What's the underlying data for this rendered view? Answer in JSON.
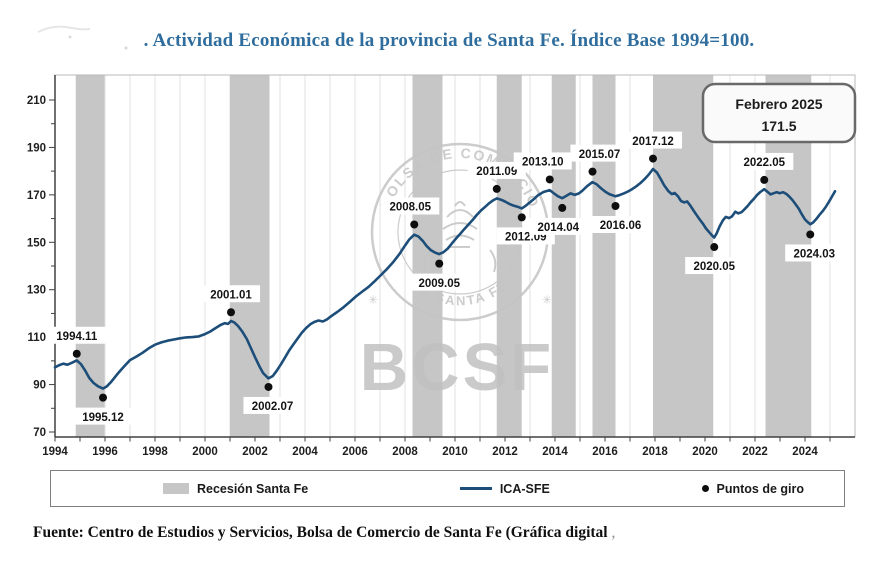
{
  "page": {
    "title": ". Actividad Económica de la provincia de Santa Fe. Índice Base 1994=100.",
    "title_color": "#2e6d9d",
    "source_note": "Fuente: Centro de Estudios y Servicios, Bolsa de Comercio de Santa Fe (Gráfica digital",
    "source_suffix": ","
  },
  "legend": {
    "recession_label": "Recesión Santa Fe",
    "line_label": "ICA-SFE",
    "points_label": "Puntos de giro"
  },
  "watermark": {
    "letters": "BCSF",
    "seal_top": "BOLSA DE COMERCIO",
    "seal_bottom": "DE SANTA FE"
  },
  "colors": {
    "line": "#1d4e79",
    "band": "#c6c6c6",
    "grid": "#e0e0e0",
    "axis": "#404040",
    "tick_label": "#1f1f1f",
    "dot": "#0e0e0e",
    "watermark": "#c4c4c4",
    "box_border": "#696969",
    "box_fill": "#fafafa"
  },
  "chart_data": {
    "type": "line",
    "title": "Actividad Económica de la provincia de Santa Fe. Índice Base 1994=100",
    "xlabel": "",
    "ylabel": "",
    "x_axis": {
      "min": 1994,
      "max": 2026,
      "label_start": 1994,
      "label_end": 2024,
      "label_step": 2,
      "minor_step": 1
    },
    "y_axis": {
      "min": 70,
      "max": 210,
      "label_step": 20,
      "minor_step": 10
    },
    "grid": "vertical-only",
    "legend_position": "bottom",
    "recession_bands": [
      [
        1994.83,
        1995.98
      ],
      [
        2001.0,
        2002.58
      ],
      [
        2008.3,
        2009.5
      ],
      [
        2011.67,
        2012.67
      ],
      [
        2013.87,
        2014.83
      ],
      [
        2015.5,
        2016.42
      ],
      [
        2017.92,
        2020.33
      ],
      [
        2022.42,
        2024.25
      ]
    ],
    "series": [
      {
        "name": "ICA-SFE",
        "points": [
          [
            1994.0,
            97.3
          ],
          [
            1994.17,
            98.2
          ],
          [
            1994.33,
            98.8
          ],
          [
            1994.5,
            98.4
          ],
          [
            1994.67,
            99.2
          ],
          [
            1994.87,
            100.2
          ],
          [
            1995.04,
            98.6
          ],
          [
            1995.21,
            95.8
          ],
          [
            1995.37,
            92.8
          ],
          [
            1995.54,
            90.7
          ],
          [
            1995.71,
            89.3
          ],
          [
            1995.92,
            88.3
          ],
          [
            1996.08,
            89.3
          ],
          [
            1996.25,
            91.2
          ],
          [
            1996.5,
            94.5
          ],
          [
            1996.75,
            97.5
          ],
          [
            1997.0,
            100.3
          ],
          [
            1997.25,
            101.8
          ],
          [
            1997.5,
            103.4
          ],
          [
            1997.75,
            105.3
          ],
          [
            1998.0,
            106.8
          ],
          [
            1998.25,
            107.8
          ],
          [
            1998.5,
            108.5
          ],
          [
            1998.75,
            109.0
          ],
          [
            1999.0,
            109.5
          ],
          [
            1999.25,
            109.9
          ],
          [
            1999.5,
            110.0
          ],
          [
            1999.75,
            110.3
          ],
          [
            2000.0,
            111.3
          ],
          [
            2000.21,
            112.4
          ],
          [
            2000.42,
            113.8
          ],
          [
            2000.62,
            115.1
          ],
          [
            2000.79,
            115.9
          ],
          [
            2000.92,
            115.6
          ],
          [
            2001.04,
            116.8
          ],
          [
            2001.17,
            116.2
          ],
          [
            2001.33,
            114.6
          ],
          [
            2001.5,
            112.2
          ],
          [
            2001.67,
            109.2
          ],
          [
            2001.83,
            105.6
          ],
          [
            2002.0,
            101.6
          ],
          [
            2002.17,
            97.8
          ],
          [
            2002.33,
            94.8
          ],
          [
            2002.54,
            92.6
          ],
          [
            2002.71,
            93.6
          ],
          [
            2002.87,
            95.8
          ],
          [
            2003.04,
            98.6
          ],
          [
            2003.21,
            101.6
          ],
          [
            2003.37,
            104.4
          ],
          [
            2003.54,
            107.0
          ],
          [
            2003.71,
            109.5
          ],
          [
            2003.87,
            111.8
          ],
          [
            2004.04,
            113.8
          ],
          [
            2004.21,
            115.4
          ],
          [
            2004.37,
            116.4
          ],
          [
            2004.54,
            117.0
          ],
          [
            2004.71,
            116.6
          ],
          [
            2004.87,
            117.4
          ],
          [
            2005.04,
            118.8
          ],
          [
            2005.29,
            120.6
          ],
          [
            2005.54,
            122.6
          ],
          [
            2005.79,
            124.8
          ],
          [
            2006.04,
            127.2
          ],
          [
            2006.29,
            129.2
          ],
          [
            2006.54,
            131.2
          ],
          [
            2006.79,
            133.6
          ],
          [
            2007.04,
            136.2
          ],
          [
            2007.29,
            138.8
          ],
          [
            2007.54,
            141.8
          ],
          [
            2007.79,
            145.2
          ],
          [
            2008.0,
            148.6
          ],
          [
            2008.17,
            151.2
          ],
          [
            2008.37,
            153.2
          ],
          [
            2008.54,
            152.4
          ],
          [
            2008.71,
            150.6
          ],
          [
            2008.87,
            148.4
          ],
          [
            2009.04,
            146.6
          ],
          [
            2009.21,
            145.6
          ],
          [
            2009.37,
            145.0
          ],
          [
            2009.54,
            145.8
          ],
          [
            2009.71,
            147.4
          ],
          [
            2009.87,
            149.4
          ],
          [
            2010.04,
            151.6
          ],
          [
            2010.21,
            153.6
          ],
          [
            2010.37,
            155.5
          ],
          [
            2010.54,
            157.5
          ],
          [
            2010.71,
            159.5
          ],
          [
            2010.87,
            161.5
          ],
          [
            2011.04,
            163.4
          ],
          [
            2011.21,
            165.0
          ],
          [
            2011.37,
            166.5
          ],
          [
            2011.54,
            167.8
          ],
          [
            2011.67,
            168.5
          ],
          [
            2011.83,
            168.0
          ],
          [
            2012.0,
            167.2
          ],
          [
            2012.17,
            166.2
          ],
          [
            2012.33,
            165.5
          ],
          [
            2012.5,
            165.0
          ],
          [
            2012.67,
            164.3
          ],
          [
            2012.83,
            165.4
          ],
          [
            2013.0,
            166.9
          ],
          [
            2013.17,
            168.4
          ],
          [
            2013.33,
            169.9
          ],
          [
            2013.54,
            171.2
          ],
          [
            2013.79,
            172.0
          ],
          [
            2013.96,
            170.6
          ],
          [
            2014.12,
            169.4
          ],
          [
            2014.29,
            168.6
          ],
          [
            2014.46,
            169.6
          ],
          [
            2014.62,
            170.6
          ],
          [
            2014.79,
            170.0
          ],
          [
            2014.96,
            170.6
          ],
          [
            2015.12,
            172.0
          ],
          [
            2015.29,
            173.7
          ],
          [
            2015.5,
            175.4
          ],
          [
            2015.67,
            174.4
          ],
          [
            2015.83,
            172.9
          ],
          [
            2016.0,
            171.4
          ],
          [
            2016.17,
            170.3
          ],
          [
            2016.42,
            169.4
          ],
          [
            2016.58,
            169.9
          ],
          [
            2016.75,
            170.6
          ],
          [
            2016.92,
            171.4
          ],
          [
            2017.08,
            172.4
          ],
          [
            2017.25,
            173.6
          ],
          [
            2017.42,
            175.0
          ],
          [
            2017.58,
            176.6
          ],
          [
            2017.75,
            178.6
          ],
          [
            2017.92,
            180.9
          ],
          [
            2018.08,
            179.4
          ],
          [
            2018.21,
            177.0
          ],
          [
            2018.37,
            174.0
          ],
          [
            2018.54,
            171.5
          ],
          [
            2018.67,
            170.3
          ],
          [
            2018.79,
            170.8
          ],
          [
            2018.92,
            169.4
          ],
          [
            2019.04,
            167.4
          ],
          [
            2019.17,
            166.8
          ],
          [
            2019.29,
            167.2
          ],
          [
            2019.42,
            165.4
          ],
          [
            2019.54,
            163.4
          ],
          [
            2019.67,
            161.4
          ],
          [
            2019.79,
            159.6
          ],
          [
            2019.92,
            157.8
          ],
          [
            2020.04,
            155.8
          ],
          [
            2020.17,
            154.2
          ],
          [
            2020.29,
            152.8
          ],
          [
            2020.37,
            152.0
          ],
          [
            2020.46,
            153.6
          ],
          [
            2020.58,
            156.6
          ],
          [
            2020.71,
            159.2
          ],
          [
            2020.83,
            160.7
          ],
          [
            2020.96,
            160.2
          ],
          [
            2021.08,
            160.9
          ],
          [
            2021.21,
            162.9
          ],
          [
            2021.33,
            162.2
          ],
          [
            2021.46,
            162.7
          ],
          [
            2021.58,
            163.9
          ],
          [
            2021.71,
            165.4
          ],
          [
            2021.83,
            166.9
          ],
          [
            2021.96,
            168.4
          ],
          [
            2022.08,
            169.9
          ],
          [
            2022.21,
            171.2
          ],
          [
            2022.37,
            172.4
          ],
          [
            2022.5,
            171.3
          ],
          [
            2022.62,
            170.2
          ],
          [
            2022.75,
            170.7
          ],
          [
            2022.87,
            171.1
          ],
          [
            2023.0,
            170.7
          ],
          [
            2023.12,
            171.1
          ],
          [
            2023.25,
            170.4
          ],
          [
            2023.37,
            169.3
          ],
          [
            2023.5,
            167.8
          ],
          [
            2023.62,
            166.1
          ],
          [
            2023.75,
            164.1
          ],
          [
            2023.87,
            161.9
          ],
          [
            2024.0,
            159.6
          ],
          [
            2024.12,
            158.4
          ],
          [
            2024.21,
            157.6
          ],
          [
            2024.33,
            158.4
          ],
          [
            2024.46,
            159.9
          ],
          [
            2024.58,
            161.6
          ],
          [
            2024.71,
            163.2
          ],
          [
            2024.83,
            164.9
          ],
          [
            2024.96,
            167.1
          ],
          [
            2025.08,
            169.3
          ],
          [
            2025.2,
            171.5
          ]
        ]
      }
    ],
    "turning_points": [
      {
        "label": "1994.11",
        "year": 1994.87,
        "value": 103.0,
        "pos": "above",
        "dx": 0
      },
      {
        "label": "1995.12",
        "year": 1995.92,
        "value": 84.5,
        "pos": "below",
        "dx": 0
      },
      {
        "label": "2001.01",
        "year": 2001.04,
        "value": 120.5,
        "pos": "above",
        "dx": 0
      },
      {
        "label": "2002.07",
        "year": 2002.54,
        "value": 89.0,
        "pos": "below",
        "dx": 4
      },
      {
        "label": "2008.05",
        "year": 2008.37,
        "value": 157.5,
        "pos": "above",
        "dx": -4
      },
      {
        "label": "2009.05",
        "year": 2009.37,
        "value": 141.0,
        "pos": "below",
        "dx": 0
      },
      {
        "label": "2011.09",
        "year": 2011.67,
        "value": 172.5,
        "pos": "above",
        "dx": 0
      },
      {
        "label": "2012.09",
        "year": 2012.67,
        "value": 160.5,
        "pos": "below",
        "dx": 4
      },
      {
        "label": "2013.10",
        "year": 2013.79,
        "value": 176.5,
        "pos": "above",
        "dx": -7
      },
      {
        "label": "2014.04",
        "year": 2014.29,
        "value": 164.5,
        "pos": "below",
        "dx": -4
      },
      {
        "label": "2015.07",
        "year": 2015.5,
        "value": 179.8,
        "pos": "above",
        "dx": 7
      },
      {
        "label": "2016.06",
        "year": 2016.42,
        "value": 165.3,
        "pos": "below",
        "dx": 5
      },
      {
        "label": "2017.12",
        "year": 2017.92,
        "value": 185.3,
        "pos": "above",
        "dx": 0
      },
      {
        "label": "2020.05",
        "year": 2020.37,
        "value": 148.0,
        "pos": "below",
        "dx": 0
      },
      {
        "label": "2022.05",
        "year": 2022.37,
        "value": 176.3,
        "pos": "above",
        "dx": 0
      },
      {
        "label": "2024.03",
        "year": 2024.21,
        "value": 153.3,
        "pos": "below",
        "dx": 4
      }
    ],
    "latest_value": {
      "period": "Febrero 2025",
      "value": "171.5"
    }
  }
}
